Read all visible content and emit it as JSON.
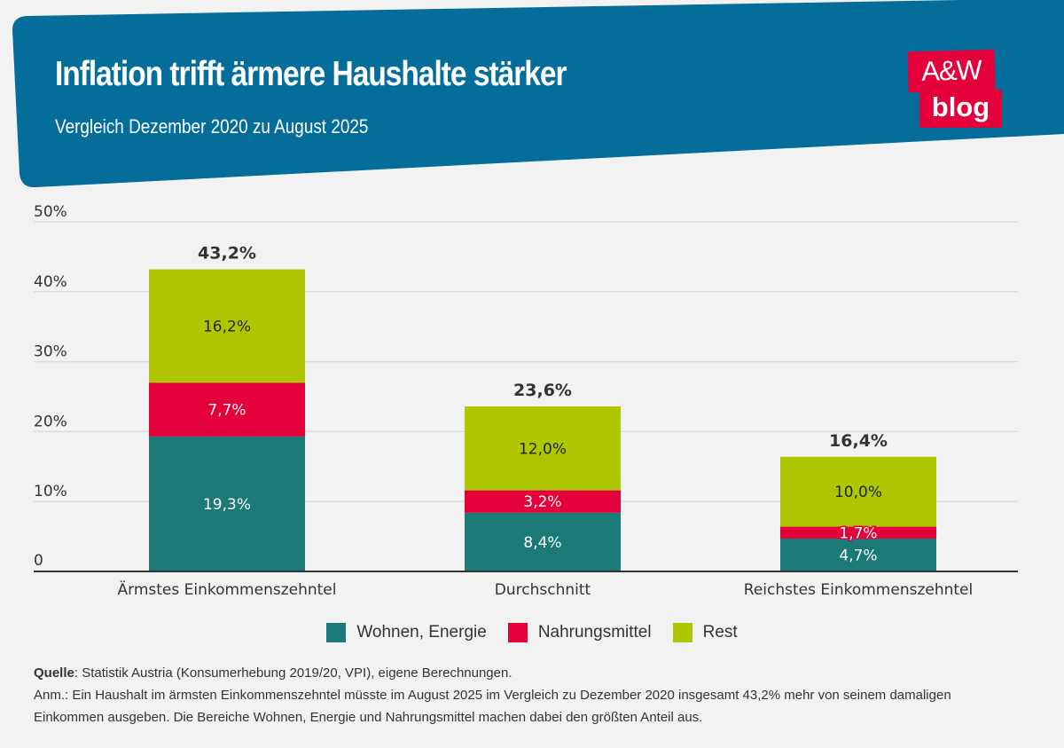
{
  "header": {
    "title": "Inflation trifft ärmere Haushalte stärker",
    "subtitle": "Vergleich Dezember 2020 zu August 2025",
    "banner_color": "#046d99"
  },
  "logo": {
    "line1": "A&W",
    "line2": "blog",
    "color": "#e3003b"
  },
  "chart_data": {
    "type": "bar",
    "stacked": true,
    "title": "Inflation trifft ärmere Haushalte stärker",
    "subtitle": "Vergleich Dezember 2020 zu August 2025",
    "xlabel": "",
    "ylabel": "",
    "ylim": [
      0,
      50
    ],
    "yticks": [
      0,
      10,
      20,
      30,
      40,
      50
    ],
    "ytick_labels": [
      "0",
      "10%",
      "20%",
      "30%",
      "40%",
      "50%"
    ],
    "grid": true,
    "categories": [
      "Ärmstes Einkommenszehntel",
      "Durchschnitt",
      "Reichstes Einkommenszehntel"
    ],
    "series": [
      {
        "name": "Wohnen, Energie",
        "color": "#1b7a78",
        "values": [
          19.3,
          8.4,
          4.7
        ],
        "labels": [
          "19,3%",
          "8,4%",
          "4,7%"
        ],
        "label_color": "#ffffff"
      },
      {
        "name": "Nahrungsmittel",
        "color": "#e3003b",
        "values": [
          7.7,
          3.2,
          1.7
        ],
        "labels": [
          "7,7%",
          "3,2%",
          "1,7%"
        ],
        "label_color": "#ffffff"
      },
      {
        "name": "Rest",
        "color": "#afc700",
        "values": [
          16.2,
          12.0,
          10.0
        ],
        "labels": [
          "16,2%",
          "12,0%",
          "10,0%"
        ],
        "label_color": "#222222"
      }
    ],
    "totals": [
      43.2,
      23.6,
      16.4
    ],
    "total_labels": [
      "43,2%",
      "23,6%",
      "16,4%"
    ],
    "legend_position": "bottom"
  },
  "footer": {
    "source_label": "Quelle",
    "source_text": ": Statistik Austria (Konsumerhebung 2019/20, VPI), eigene Berechnungen.",
    "note_line1": "Anm.: Ein Haushalt im ärmsten Einkommenszehntel müsste im August 2025 im Vergleich zu Dezember 2020 insgesamt 43,2% mehr von seinem damaligen",
    "note_line2": "Einkommen ausgeben. Die Bereiche Wohnen, Energie und Nahrungsmittel machen dabei den größten Anteil aus."
  }
}
